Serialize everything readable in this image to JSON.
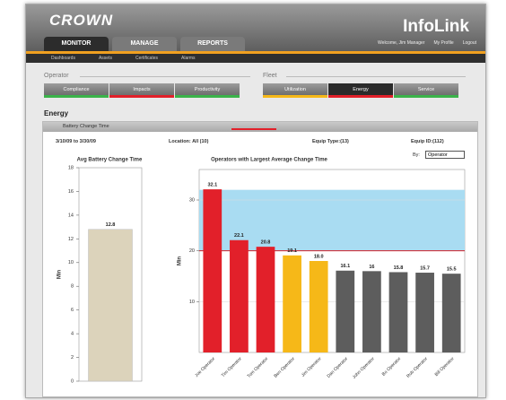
{
  "ui": {
    "logo": "CROWN",
    "product": "InfoLink",
    "user_links": [
      "Welcome, Jim Manager",
      "My Profile",
      "Logout"
    ],
    "tabs": [
      "MONITOR",
      "MANAGE",
      "REPORTS"
    ],
    "subtabs": [
      "Dashboards",
      "Assets",
      "Certificates",
      "Alarms"
    ],
    "operator_label": "Operator",
    "operator_tabs": [
      "Compliance",
      "Impacts",
      "Productivity"
    ],
    "fleet_label": "Fleet",
    "fleet_tabs": [
      "Utilization",
      "Energy",
      "Service"
    ],
    "page_heading": "Energy",
    "panel_title": "Battery Change Time",
    "filters": [
      "3/10/09 to 3/30/09",
      "Location: All (10)",
      "Equip Type:(13)",
      "Equip ID:(112)"
    ],
    "by_label": "By:",
    "by_value": "Operator"
  },
  "chart_data": [
    {
      "type": "bar",
      "title": "Avg Battery Change Time",
      "ylabel": "Min",
      "categories": [
        null
      ],
      "values": [
        12.8
      ],
      "color": "#dcd3bb",
      "ylim": [
        0,
        18
      ],
      "yticks": [
        0,
        2,
        4,
        6,
        8,
        10,
        12,
        14,
        16,
        18
      ]
    },
    {
      "type": "bar",
      "title": "Operators with Largest Average Change Time",
      "ylabel": "Min",
      "categories": [
        "Joe Operator",
        "Tim Operator",
        "Tom Operator",
        "Ben Operator",
        "Jim Operator",
        "Dan Operator",
        "John Operator",
        "Bo Operator",
        "Rob Operator",
        "Bill Operator"
      ],
      "values": [
        32.1,
        22.1,
        20.8,
        19.1,
        18.0,
        16.1,
        16,
        15.8,
        15.7,
        15.5
      ],
      "value_labels": [
        "32.1",
        "22.1",
        "20.8",
        "19.1",
        "18.0",
        "16.1",
        "16",
        "15.8",
        "15.7",
        "15.5"
      ],
      "colors": [
        "#e2202a",
        "#e2202a",
        "#e2202a",
        "#f6b818",
        "#f6b818",
        "#5d5d5d",
        "#5d5d5d",
        "#5d5d5d",
        "#5d5d5d",
        "#5d5d5d"
      ],
      "band": [
        20,
        32
      ],
      "band_color": "#a9dcf2",
      "reference_line": 20,
      "reference_color": "#d0202a",
      "ylim": [
        0,
        36
      ],
      "yticks": [
        10,
        20,
        30
      ],
      "grid": true
    }
  ]
}
